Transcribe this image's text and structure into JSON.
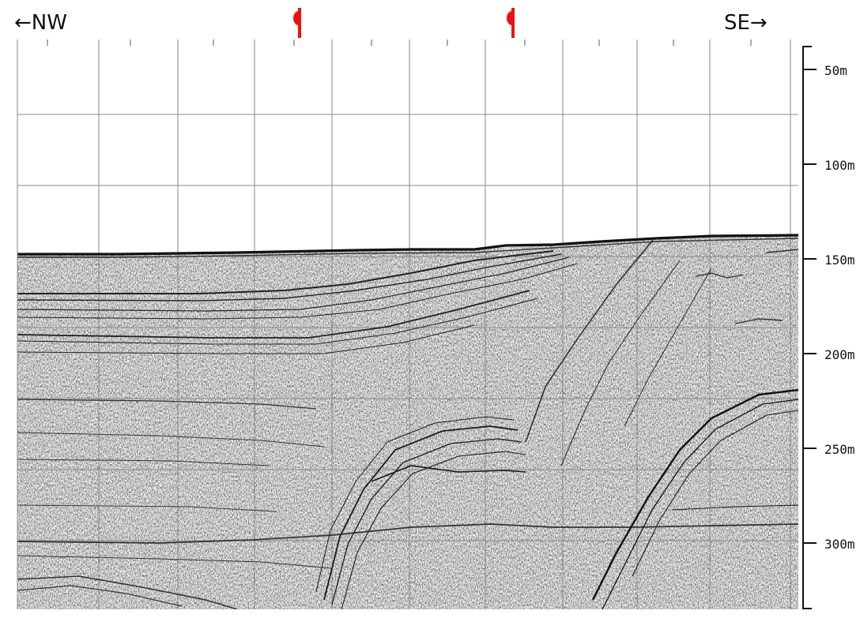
{
  "directions": {
    "left": "←NW",
    "right": "SE→"
  },
  "markers": {
    "symbol": "centerline-marker-icon",
    "color": "#ee1111",
    "count": 2
  },
  "depth_scale": {
    "labels": [
      "50m",
      "100m",
      "150m",
      "200m",
      "250m",
      "300m"
    ],
    "unit": "m"
  },
  "colors": {
    "ink": "#111111",
    "grid": "#8a8a8a",
    "background": "#ffffff"
  }
}
